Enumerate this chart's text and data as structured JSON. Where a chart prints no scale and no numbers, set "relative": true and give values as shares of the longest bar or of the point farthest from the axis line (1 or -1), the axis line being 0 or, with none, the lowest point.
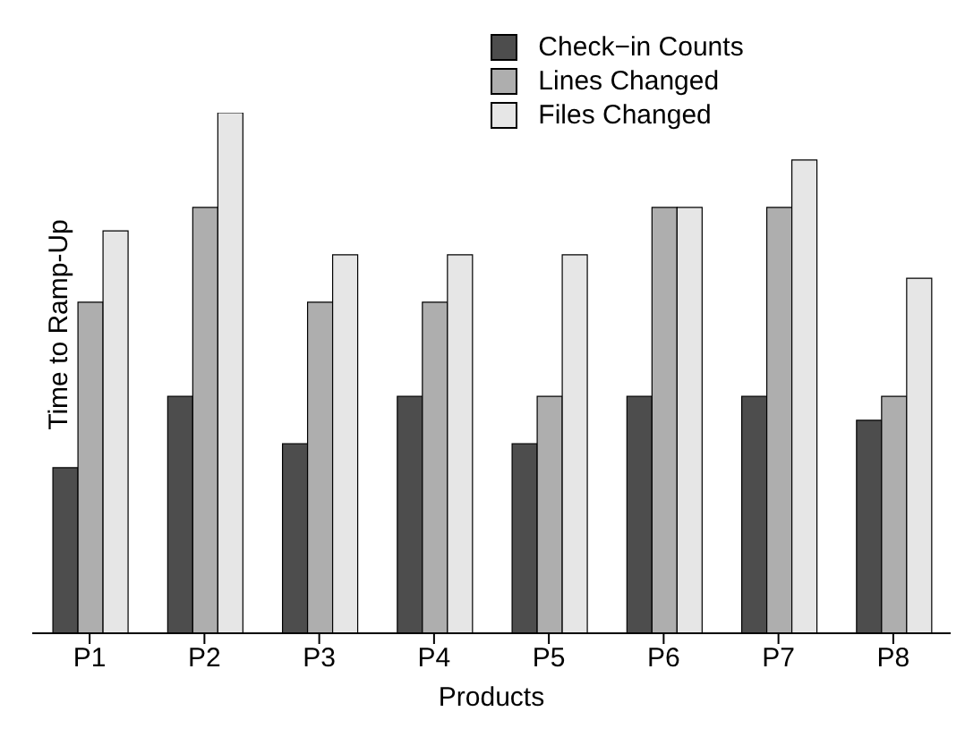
{
  "chart_data": {
    "type": "bar",
    "relative": true,
    "xlabel": "Products",
    "ylabel": "Time to Ramp-Up",
    "categories": [
      "P1",
      "P2",
      "P3",
      "P4",
      "P5",
      "P6",
      "P7",
      "P8"
    ],
    "legend": "top",
    "series": [
      {
        "name": "Check−in Counts",
        "color": "#4d4d4d",
        "values": [
          0.318,
          0.455,
          0.364,
          0.455,
          0.364,
          0.455,
          0.455,
          0.409
        ]
      },
      {
        "name": "Lines Changed",
        "color": "#aeaeae",
        "values": [
          0.636,
          0.818,
          0.636,
          0.636,
          0.455,
          0.818,
          0.818,
          0.455
        ]
      },
      {
        "name": "Files Changed",
        "color": "#e6e6e6",
        "values": [
          0.773,
          1,
          0.727,
          0.727,
          0.727,
          0.818,
          0.909,
          0.682
        ]
      }
    ]
  }
}
